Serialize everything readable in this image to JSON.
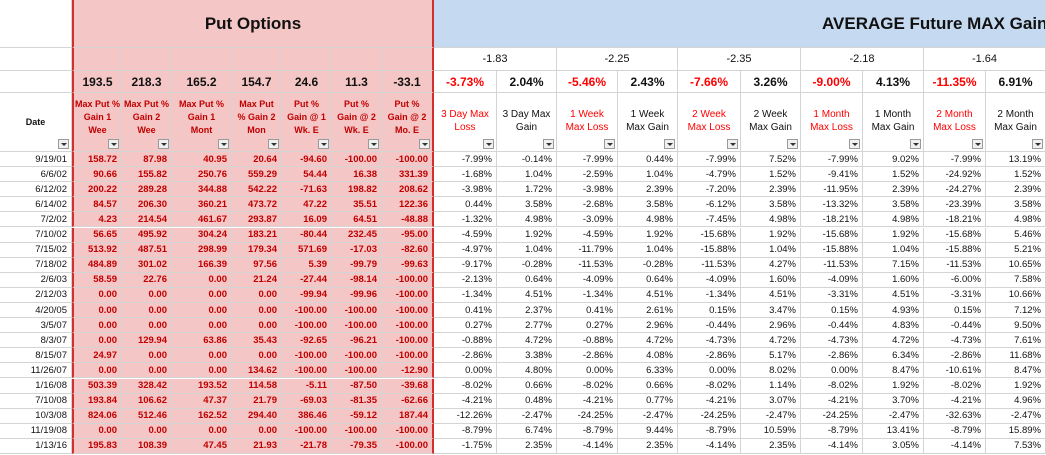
{
  "sections": {
    "put_options_title": "Put Options",
    "average_title": "AVERAGE Future MAX Gain"
  },
  "group_values": [
    "-1.83",
    "-2.25",
    "-2.35",
    "-2.18",
    "-1.64"
  ],
  "put_summary": [
    "193.5",
    "218.3",
    "165.2",
    "154.7",
    "24.6",
    "11.3",
    "-33.1"
  ],
  "avg_summary": [
    "-3.73%",
    "2.04%",
    "-5.46%",
    "2.43%",
    "-7.66%",
    "3.26%",
    "-9.00%",
    "4.13%",
    "-11.35%",
    "6.91%"
  ],
  "headers": {
    "date": "Date",
    "put": [
      [
        "Max Put %",
        "Gain 1",
        "Wee"
      ],
      [
        "Max Put %",
        "Gain 2",
        "Wee"
      ],
      [
        "Max Put %",
        "Gain 1",
        "Mont"
      ],
      [
        "Max Put",
        "% Gain 2",
        "Mon"
      ],
      [
        "Put %",
        "Gain @ 1",
        "Wk. E"
      ],
      [
        "Put %",
        "Gain @ 2",
        "Wk. E"
      ],
      [
        "Put %",
        "Gain @ 2",
        "Mo. E"
      ]
    ],
    "avg": [
      [
        "3 Day Max",
        "Loss"
      ],
      [
        "3 Day Max",
        "Gain"
      ],
      [
        "1 Week",
        "Max Loss"
      ],
      [
        "1 Week",
        "Max Gain"
      ],
      [
        "2 Week",
        "Max Loss"
      ],
      [
        "2 Week",
        "Max Gain"
      ],
      [
        "1 Month",
        "Max Loss"
      ],
      [
        "1 Month",
        "Max Gain"
      ],
      [
        "2 Month",
        "Max Loss"
      ],
      [
        "2 Month",
        "Max Gain"
      ]
    ]
  },
  "rows": [
    {
      "date": "9/19/01",
      "put": [
        "158.72",
        "87.98",
        "40.95",
        "20.64",
        "-94.60",
        "-100.00",
        "-100.00"
      ],
      "avg": [
        "-7.99%",
        "-0.14%",
        "-7.99%",
        "0.44%",
        "-7.99%",
        "7.52%",
        "-7.99%",
        "9.02%",
        "-7.99%",
        "13.19%"
      ]
    },
    {
      "date": "6/6/02",
      "put": [
        "90.66",
        "155.82",
        "250.76",
        "559.29",
        "54.44",
        "16.38",
        "331.39"
      ],
      "avg": [
        "-1.68%",
        "1.04%",
        "-2.59%",
        "1.04%",
        "-4.79%",
        "1.52%",
        "-9.41%",
        "1.52%",
        "-24.92%",
        "1.52%"
      ]
    },
    {
      "date": "6/12/02",
      "put": [
        "200.22",
        "289.28",
        "344.88",
        "542.22",
        "-71.63",
        "198.82",
        "208.62"
      ],
      "avg": [
        "-3.98%",
        "1.72%",
        "-3.98%",
        "2.39%",
        "-7.20%",
        "2.39%",
        "-11.95%",
        "2.39%",
        "-24.27%",
        "2.39%"
      ]
    },
    {
      "date": "6/14/02",
      "put": [
        "84.57",
        "206.30",
        "360.21",
        "473.72",
        "47.22",
        "35.51",
        "122.36"
      ],
      "avg": [
        "0.44%",
        "3.58%",
        "-2.68%",
        "3.58%",
        "-6.12%",
        "3.58%",
        "-13.32%",
        "3.58%",
        "-23.39%",
        "3.58%"
      ]
    },
    {
      "date": "7/2/02",
      "put": [
        "4.23",
        "214.54",
        "461.67",
        "293.87",
        "16.09",
        "64.51",
        "-48.88"
      ],
      "avg": [
        "-1.32%",
        "4.98%",
        "-3.09%",
        "4.98%",
        "-7.45%",
        "4.98%",
        "-18.21%",
        "4.98%",
        "-18.21%",
        "4.98%"
      ]
    },
    {
      "date": "7/10/02",
      "put": [
        "56.65",
        "495.92",
        "304.24",
        "183.21",
        "-80.44",
        "232.45",
        "-95.00"
      ],
      "avg": [
        "-4.59%",
        "1.92%",
        "-4.59%",
        "1.92%",
        "-15.68%",
        "1.92%",
        "-15.68%",
        "1.92%",
        "-15.68%",
        "5.46%"
      ]
    },
    {
      "date": "7/15/02",
      "put": [
        "513.92",
        "487.51",
        "298.99",
        "179.34",
        "571.69",
        "-17.03",
        "-82.60"
      ],
      "avg": [
        "-4.97%",
        "1.04%",
        "-11.79%",
        "1.04%",
        "-15.88%",
        "1.04%",
        "-15.88%",
        "1.04%",
        "-15.88%",
        "5.21%"
      ]
    },
    {
      "date": "7/18/02",
      "put": [
        "484.89",
        "301.02",
        "166.39",
        "97.56",
        "5.39",
        "-99.79",
        "-99.63"
      ],
      "avg": [
        "-9.17%",
        "-0.28%",
        "-11.53%",
        "-0.28%",
        "-11.53%",
        "4.27%",
        "-11.53%",
        "7.15%",
        "-11.53%",
        "10.65%"
      ]
    },
    {
      "date": "2/6/03",
      "put": [
        "58.59",
        "22.76",
        "0.00",
        "21.24",
        "-27.44",
        "-98.14",
        "-100.00"
      ],
      "avg": [
        "-2.13%",
        "0.64%",
        "-4.09%",
        "0.64%",
        "-4.09%",
        "1.60%",
        "-4.09%",
        "1.60%",
        "-6.00%",
        "7.58%"
      ]
    },
    {
      "date": "2/12/03",
      "put": [
        "0.00",
        "0.00",
        "0.00",
        "0.00",
        "-99.94",
        "-99.96",
        "-100.00"
      ],
      "avg": [
        "-1.34%",
        "4.51%",
        "-1.34%",
        "4.51%",
        "-1.34%",
        "4.51%",
        "-3.31%",
        "4.51%",
        "-3.31%",
        "10.66%"
      ]
    },
    {
      "date": "4/20/05",
      "put": [
        "0.00",
        "0.00",
        "0.00",
        "0.00",
        "-100.00",
        "-100.00",
        "-100.00"
      ],
      "avg": [
        "0.41%",
        "2.37%",
        "0.41%",
        "2.61%",
        "0.15%",
        "3.47%",
        "0.15%",
        "4.93%",
        "0.15%",
        "7.12%"
      ]
    },
    {
      "date": "3/5/07",
      "put": [
        "0.00",
        "0.00",
        "0.00",
        "0.00",
        "-100.00",
        "-100.00",
        "-100.00"
      ],
      "avg": [
        "0.27%",
        "2.77%",
        "0.27%",
        "2.96%",
        "-0.44%",
        "2.96%",
        "-0.44%",
        "4.83%",
        "-0.44%",
        "9.50%"
      ]
    },
    {
      "date": "8/3/07",
      "put": [
        "0.00",
        "129.94",
        "63.86",
        "35.43",
        "-92.65",
        "-96.21",
        "-100.00"
      ],
      "avg": [
        "-0.88%",
        "4.72%",
        "-0.88%",
        "4.72%",
        "-4.73%",
        "4.72%",
        "-4.73%",
        "4.72%",
        "-4.73%",
        "7.61%"
      ]
    },
    {
      "date": "8/15/07",
      "put": [
        "24.97",
        "0.00",
        "0.00",
        "0.00",
        "-100.00",
        "-100.00",
        "-100.00"
      ],
      "avg": [
        "-2.86%",
        "3.38%",
        "-2.86%",
        "4.08%",
        "-2.86%",
        "5.17%",
        "-2.86%",
        "6.34%",
        "-2.86%",
        "11.68%"
      ]
    },
    {
      "date": "11/26/07",
      "put": [
        "0.00",
        "0.00",
        "0.00",
        "134.62",
        "-100.00",
        "-100.00",
        "-12.90"
      ],
      "avg": [
        "0.00%",
        "4.80%",
        "0.00%",
        "6.33%",
        "0.00%",
        "8.02%",
        "0.00%",
        "8.47%",
        "-10.61%",
        "8.47%"
      ]
    },
    {
      "date": "1/16/08",
      "put": [
        "503.39",
        "328.42",
        "193.52",
        "114.58",
        "-5.11",
        "-87.50",
        "-39.68"
      ],
      "avg": [
        "-8.02%",
        "0.66%",
        "-8.02%",
        "0.66%",
        "-8.02%",
        "1.14%",
        "-8.02%",
        "1.92%",
        "-8.02%",
        "1.92%"
      ]
    },
    {
      "date": "7/10/08",
      "put": [
        "193.84",
        "106.62",
        "47.37",
        "21.79",
        "-69.03",
        "-81.35",
        "-62.66"
      ],
      "avg": [
        "-4.21%",
        "0.48%",
        "-4.21%",
        "0.77%",
        "-4.21%",
        "3.07%",
        "-4.21%",
        "3.70%",
        "-4.21%",
        "4.96%"
      ]
    },
    {
      "date": "10/3/08",
      "put": [
        "824.06",
        "512.46",
        "162.52",
        "294.40",
        "386.46",
        "-59.12",
        "187.44"
      ],
      "avg": [
        "-12.26%",
        "-2.47%",
        "-24.25%",
        "-2.47%",
        "-24.25%",
        "-2.47%",
        "-24.25%",
        "-2.47%",
        "-32.63%",
        "-2.47%"
      ]
    },
    {
      "date": "11/19/08",
      "put": [
        "0.00",
        "0.00",
        "0.00",
        "0.00",
        "-100.00",
        "-100.00",
        "-100.00"
      ],
      "avg": [
        "-8.79%",
        "6.74%",
        "-8.79%",
        "9.44%",
        "-8.79%",
        "10.59%",
        "-8.79%",
        "13.41%",
        "-8.79%",
        "15.89%"
      ]
    },
    {
      "date": "1/13/16",
      "put": [
        "195.83",
        "108.39",
        "47.45",
        "21.93",
        "-21.78",
        "-79.35",
        "-100.00"
      ],
      "avg": [
        "-1.75%",
        "2.35%",
        "-4.14%",
        "2.35%",
        "-4.14%",
        "2.35%",
        "-4.14%",
        "3.05%",
        "-4.14%",
        "7.53%"
      ]
    }
  ]
}
